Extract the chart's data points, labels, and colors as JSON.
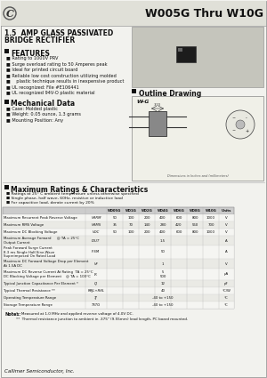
{
  "title": "W005G Thru W10G",
  "subtitle1": "1.5  AMP GLASS PASSIVATED",
  "subtitle2": "BRIDGE RECTIFIER",
  "bg_color": "#f2f2ee",
  "header_bg": "#e0e0d8",
  "features_title": "FEATURES",
  "features": [
    "Rating to 1000V PRV",
    "Surge overload rating to 50 Amperes peak",
    "Ideal for printed circuit board",
    "Reliable low cost construction utilizing molded",
    "   plastic technique results in inexpensive product",
    "UL recognized: File #E106441",
    "UL recognized 94V-O plastic material"
  ],
  "mech_title": "Mechanical Data",
  "mech": [
    "Case: Molded plastic",
    "Weight: 0.05 ounce, 1.3 grams",
    "Mounting Position: Any"
  ],
  "outline_title": "Outline Drawing",
  "package_label": "W-G",
  "ratings_title": "Maximum Ratings & Characteristics",
  "ratings_notes": [
    "Ratings at 25° C ambient temperature unless otherwise specified",
    "Single phase, half wave, 60Hz, resistive or inductive load",
    "For capacitive load, derate current by 20%"
  ],
  "table_headers": [
    "",
    "",
    "W005G",
    "W01G",
    "W02G",
    "W04G",
    "W06G",
    "W08G",
    "W10G",
    "Units"
  ],
  "table_rows": [
    [
      "Maximum Recurrent Peak Reverse Voltage",
      "VRRM",
      "50",
      "100",
      "200",
      "400",
      "600",
      "800",
      "1000",
      "V"
    ],
    [
      "Maximum RMS Voltage",
      "VRMS",
      "35",
      "70",
      "140",
      "280",
      "420",
      "560",
      "700",
      "V"
    ],
    [
      "Maximum DC Blocking Voltage",
      "VDC",
      "50",
      "100",
      "200",
      "400",
      "600",
      "800",
      "1000",
      "V"
    ],
    [
      "Maximum Average Forward     @ TA = 25°C\nOutput Current",
      "IOUT",
      "",
      "",
      "",
      "1.5",
      "",
      "",
      "",
      "A"
    ],
    [
      "Peak Forward Surge Current\n8.3 ms Single Half-Sine-Wave\nSuperimposed On Rated Load",
      "IFSM",
      "",
      "",
      "",
      "50",
      "",
      "",
      "",
      "A"
    ],
    [
      "Maximum DC Forward Voltage Drop per Element\nAt 1.5A DC",
      "VF",
      "",
      "",
      "",
      "1",
      "",
      "",
      "",
      "V"
    ],
    [
      "Maximum DC Reverse Current At Rating  TA = 25°C\nDC Blocking Voltage per Element    @ TA = 100°C",
      "IR",
      "",
      "",
      "",
      "5\n500",
      "",
      "",
      "",
      "μA"
    ],
    [
      "Typical Junction Capacitance Per Element *",
      "CJ",
      "",
      "",
      "",
      "12",
      "",
      "",
      "",
      "pF"
    ],
    [
      "Typical Thermal Resistance **",
      "RθJL+RθL",
      "",
      "",
      "",
      "40",
      "",
      "",
      "",
      "°C/W"
    ],
    [
      "Operating Temperature Range",
      "TJ",
      "",
      "",
      "",
      "-40 to +150",
      "",
      "",
      "",
      "°C"
    ],
    [
      "Storage Temperature Range",
      "TSTG",
      "",
      "",
      "",
      "-40 to +150",
      "",
      "",
      "",
      "°C"
    ]
  ],
  "notes": [
    "*   Measured at 1.0 MHz and applied reverse voltage of 4.0V DC.",
    "**  Thermal resistance junction to ambient in .375\" (9.55mm) lead length, PC board mounted."
  ],
  "company": "Callimer Semiconductor, Inc."
}
